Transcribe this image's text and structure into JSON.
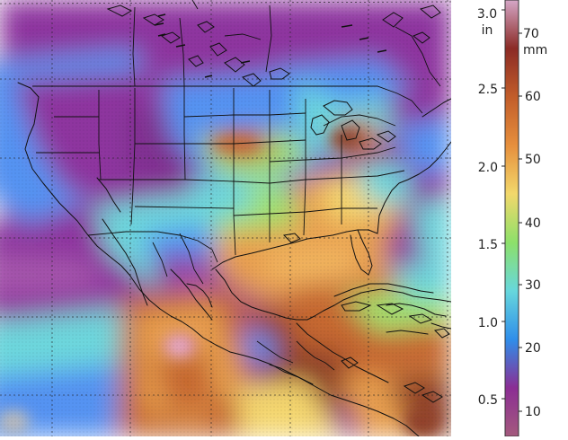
{
  "map": {
    "region": "North America, Central America and Caribbean",
    "palette": {
      "violet": "#8a2f9c",
      "purple": "#a24fa9",
      "blue": "#4f8ff2",
      "cyan": "#67d6dc",
      "green": "#9ee06a",
      "yellow": "#f4d56a",
      "orange": "#e79c49",
      "rust": "#c4632b",
      "brown": "#8d3a22",
      "pink": "#d68ab0",
      "gray": "#b8b8b8"
    }
  },
  "colorbar": {
    "inches": {
      "unit_line1": "3.0",
      "unit_line2": "in",
      "ticks": [
        "2.5",
        "2.0",
        "1.5",
        "1.0",
        "0.5"
      ]
    },
    "millimeters": {
      "unit_line1": "70",
      "unit_line2": "mm",
      "ticks": [
        "60",
        "50",
        "40",
        "30",
        "20",
        "10"
      ]
    },
    "gradient": [
      "#a45a7d",
      "#8b2e94",
      "#2f8eea",
      "#67d7dc",
      "#8de06a",
      "#f2d86b",
      "#e68f3d",
      "#c25d2a",
      "#8b2b25",
      "#d5a7c7"
    ]
  }
}
